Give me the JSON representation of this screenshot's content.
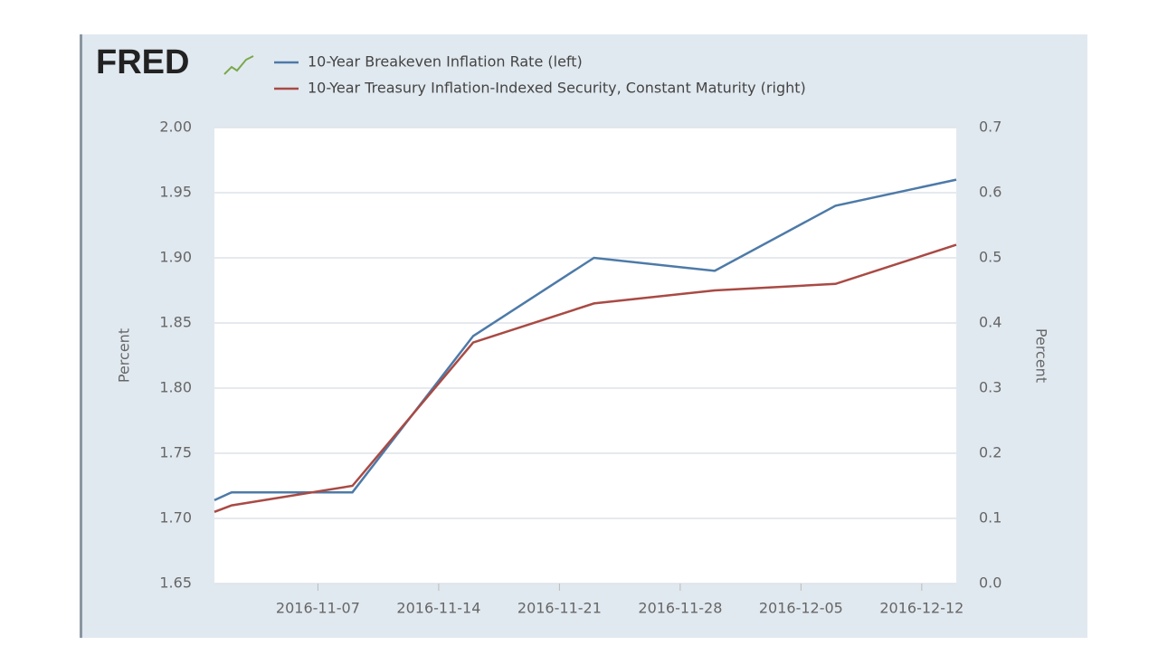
{
  "chart_data": {
    "type": "line",
    "logo": "FRED",
    "x": [
      "2016-11-01",
      "2016-11-02",
      "2016-11-09",
      "2016-11-16",
      "2016-11-23",
      "2016-11-30",
      "2016-12-07",
      "2016-12-14"
    ],
    "xlim": [
      "2016-11-01",
      "2016-12-14"
    ],
    "xticks": [
      "2016-11-07",
      "2016-11-14",
      "2016-11-21",
      "2016-11-28",
      "2016-12-05",
      "2016-12-12"
    ],
    "ylabel": "Percent",
    "y2label": "Percent",
    "ylim": [
      1.65,
      2.0
    ],
    "yticks": [
      1.65,
      {
        "value": 1.7,
        "label": "1.70"
      },
      1.75,
      {
        "value": 1.8,
        "label": "1.80"
      },
      1.85,
      {
        "value": 1.9,
        "label": "1.90"
      },
      1.95,
      {
        "value": 2.0,
        "label": "2.00"
      }
    ],
    "y2lim": [
      0,
      0.7
    ],
    "y2ticks": [
      {
        "value": 0,
        "label": "0.0"
      },
      0.1,
      0.2,
      0.3,
      0.4,
      0.5,
      0.6,
      0.7
    ],
    "grid": true,
    "series": [
      {
        "name": "10-Year Breakeven Inflation Rate (left)",
        "color": "#4d7aa8",
        "values": [
          1.714,
          1.72,
          1.72,
          1.84,
          1.9,
          1.89,
          1.94,
          1.96
        ]
      },
      {
        "name": "10-Year Treasury Inflation-Indexed Security, Constant Maturity (right)",
        "color": "#a94a44",
        "axis": "y2",
        "values": [
          0.11,
          0.12,
          0.15,
          0.37,
          0.43,
          0.45,
          0.46,
          0.52
        ]
      }
    ]
  }
}
